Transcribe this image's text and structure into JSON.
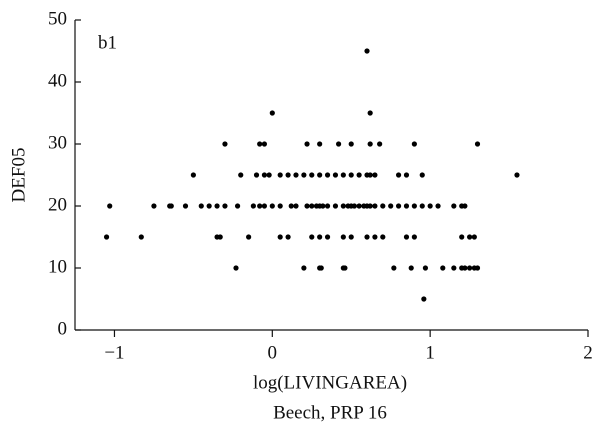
{
  "chart_data": {
    "type": "scatter",
    "title": "Beech, PRP 16",
    "annotation": "b1",
    "x_label": "log(LIVINGAREA)",
    "y_label": "DEF05",
    "color": "#000000",
    "xlim": [
      -1.25,
      2
    ],
    "ylim": [
      0,
      50
    ],
    "xticks": [
      {
        "value": -1,
        "label": "−1"
      },
      0,
      1,
      2
    ],
    "yticks": [
      0,
      10,
      20,
      30,
      40,
      50
    ],
    "x": [
      -1.05,
      -0.83,
      -0.35,
      -0.33,
      -0.15,
      0.05,
      0.1,
      0.25,
      0.3,
      0.35,
      0.45,
      0.5,
      0.6,
      0.65,
      0.7,
      0.85,
      0.9,
      1.2,
      1.25,
      1.28,
      -1.03,
      -0.75,
      -0.65,
      -0.64,
      -0.55,
      -0.45,
      -0.4,
      -0.35,
      -0.3,
      -0.22,
      -0.12,
      -0.08,
      -0.05,
      0,
      0.05,
      0.12,
      0.15,
      0.22,
      0.25,
      0.28,
      0.3,
      0.32,
      0.35,
      0.4,
      0.45,
      0.48,
      0.5,
      0.52,
      0.55,
      0.58,
      0.6,
      0.62,
      0.65,
      0.7,
      0.75,
      0.8,
      0.85,
      0.9,
      0.95,
      1.0,
      1.05,
      1.15,
      1.2,
      1.22,
      -0.5,
      -0.2,
      -0.1,
      -0.05,
      -0.02,
      0.05,
      0.1,
      0.15,
      0.2,
      0.25,
      0.3,
      0.35,
      0.4,
      0.45,
      0.5,
      0.55,
      0.6,
      0.62,
      0.65,
      0.8,
      0.85,
      0.95,
      1.55,
      -0.3,
      -0.08,
      -0.05,
      0.22,
      0.3,
      0.42,
      0.5,
      0.62,
      0.68,
      0.9,
      1.3,
      -0.23,
      0.2,
      0.3,
      0.31,
      0.45,
      0.46,
      0.77,
      0.88,
      0.97,
      1.08,
      1.15,
      1.2,
      1.22,
      1.25,
      1.28,
      1.3,
      0,
      0.62,
      0.6,
      0.96
    ],
    "y": [
      15,
      15,
      15,
      15,
      15,
      15,
      15,
      15,
      15,
      15,
      15,
      15,
      15,
      15,
      15,
      15,
      15,
      15,
      15,
      15,
      20,
      20,
      20,
      20,
      20,
      20,
      20,
      20,
      20,
      20,
      20,
      20,
      20,
      20,
      20,
      20,
      20,
      20,
      20,
      20,
      20,
      20,
      20,
      20,
      20,
      20,
      20,
      20,
      20,
      20,
      20,
      20,
      20,
      20,
      20,
      20,
      20,
      20,
      20,
      20,
      20,
      20,
      20,
      20,
      25,
      25,
      25,
      25,
      25,
      25,
      25,
      25,
      25,
      25,
      25,
      25,
      25,
      25,
      25,
      25,
      25,
      25,
      25,
      25,
      25,
      25,
      25,
      30,
      30,
      30,
      30,
      30,
      30,
      30,
      30,
      30,
      30,
      30,
      10,
      10,
      10,
      10,
      10,
      10,
      10,
      10,
      10,
      10,
      10,
      10,
      10,
      10,
      10,
      10,
      35,
      35,
      45,
      5
    ]
  }
}
